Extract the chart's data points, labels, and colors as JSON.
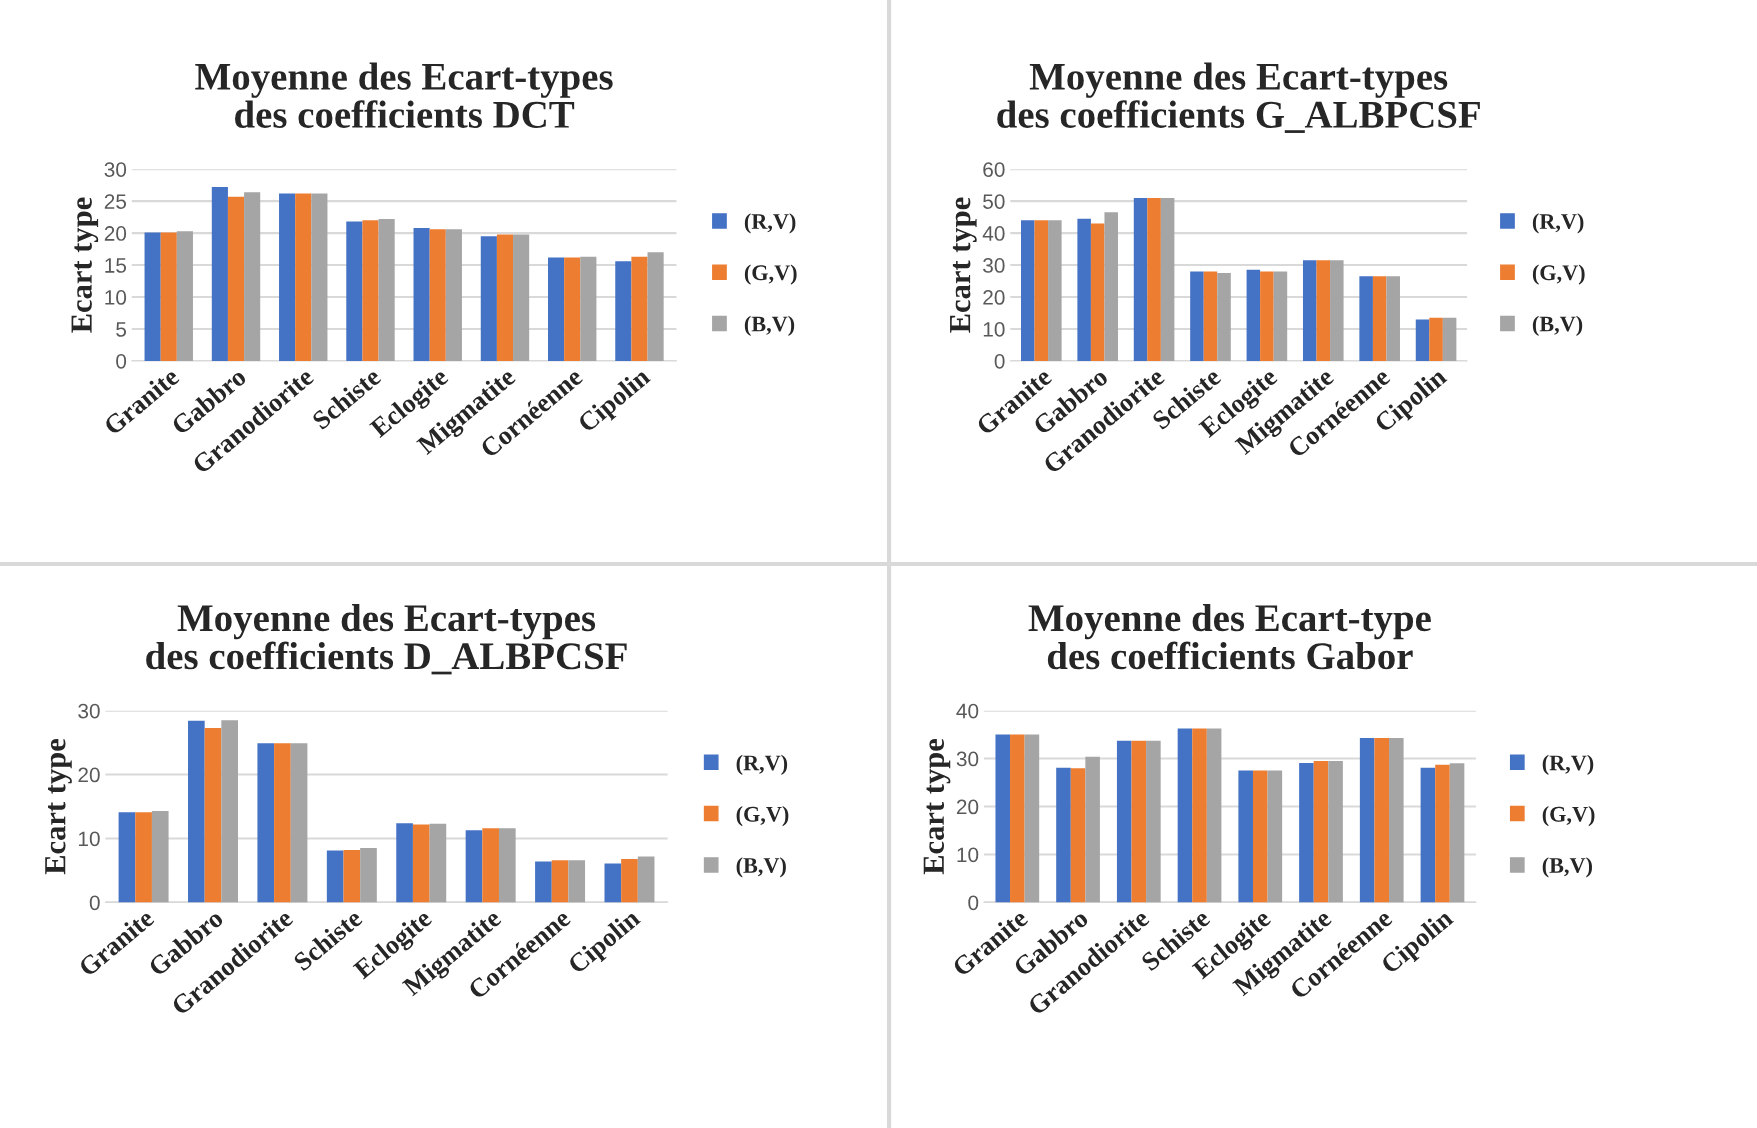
{
  "chart_data": [
    {
      "type": "bar",
      "title": "Moyenne des Ecart-types des coefficients DCT",
      "ylabel": "Ecart type",
      "categories": [
        "Granite",
        "Gabbro",
        "Granodiorite",
        "Schiste",
        "Eclogite",
        "Migmatite",
        "Cornéenne",
        "Cipolin"
      ],
      "ylim": [
        0,
        30
      ],
      "yticks": [
        0,
        5,
        10,
        15,
        20,
        25,
        30
      ],
      "grid": "y",
      "legend": "right",
      "series": [
        {
          "name": "(R,V)",
          "color": "#4472c4",
          "values": [
            20.1,
            27.2,
            26.2,
            21.8,
            20.8,
            19.5,
            16.2,
            15.6
          ]
        },
        {
          "name": "(G,V)",
          "color": "#ed7d31",
          "values": [
            20.1,
            25.7,
            26.2,
            22.0,
            20.6,
            19.8,
            16.2,
            16.3
          ]
        },
        {
          "name": "(B,V)",
          "color": "#a5a5a5",
          "values": [
            20.3,
            26.4,
            26.2,
            22.2,
            20.6,
            19.8,
            16.3,
            17.0
          ]
        }
      ]
    },
    {
      "type": "bar",
      "title": "Moyenne des Ecart-types des coefficients G_ALBPCSF",
      "ylabel": "Ecart type",
      "categories": [
        "Granite",
        "Gabbro",
        "Granodiorite",
        "Schiste",
        "Eclogite",
        "Migmatite",
        "Cornéenne",
        "Cipolin"
      ],
      "ylim": [
        0,
        60
      ],
      "yticks": [
        0,
        10,
        20,
        30,
        40,
        50,
        60
      ],
      "grid": "y",
      "legend": "right",
      "series": [
        {
          "name": "(R,V)",
          "color": "#4472c4",
          "values": [
            44,
            44.5,
            51,
            28,
            28.5,
            31.5,
            26.5,
            13
          ]
        },
        {
          "name": "(G,V)",
          "color": "#ed7d31",
          "values": [
            44,
            43,
            51,
            28,
            28,
            31.5,
            26.5,
            13.5
          ]
        },
        {
          "name": "(B,V)",
          "color": "#a5a5a5",
          "values": [
            44,
            46.5,
            51,
            27.5,
            28,
            31.5,
            26.5,
            13.5
          ]
        }
      ]
    },
    {
      "type": "bar",
      "title": "Moyenne des Ecart-types des coefficients D_ALBPCSF",
      "ylabel": "Ecart type",
      "categories": [
        "Granite",
        "Gabbro",
        "Granodiorite",
        "Schiste",
        "Eclogite",
        "Migmatite",
        "Cornéenne",
        "Cipolin"
      ],
      "ylim": [
        0,
        30
      ],
      "yticks": [
        0,
        10,
        20,
        30
      ],
      "grid": "y",
      "legend": "right",
      "series": [
        {
          "name": "(R,V)",
          "color": "#4472c4",
          "values": [
            14.1,
            28.4,
            24.9,
            8.1,
            12.4,
            11.3,
            6.4,
            6.1
          ]
        },
        {
          "name": "(G,V)",
          "color": "#ed7d31",
          "values": [
            14.1,
            27.3,
            24.9,
            8.2,
            12.2,
            11.6,
            6.6,
            6.8
          ]
        },
        {
          "name": "(B,V)",
          "color": "#a5a5a5",
          "values": [
            14.3,
            28.5,
            24.9,
            8.5,
            12.3,
            11.6,
            6.6,
            7.2
          ]
        }
      ]
    },
    {
      "type": "bar",
      "title": "Moyenne des Ecart-type des coefficients Gabor",
      "ylabel": "Ecart type",
      "categories": [
        "Granite",
        "Gabbro",
        "Granodiorite",
        "Schiste",
        "Eclogite",
        "Migmatite",
        "Cornéenne",
        "Cipolin"
      ],
      "ylim": [
        0,
        40
      ],
      "yticks": [
        0,
        10,
        20,
        30,
        40
      ],
      "grid": "y",
      "legend": "right",
      "series": [
        {
          "name": "(R,V)",
          "color": "#4472c4",
          "values": [
            35,
            28.1,
            33.7,
            36.3,
            27.5,
            29.1,
            34.3,
            28.1
          ]
        },
        {
          "name": "(G,V)",
          "color": "#ed7d31",
          "values": [
            35,
            28,
            33.7,
            36.3,
            27.5,
            29.5,
            34.3,
            28.7
          ]
        },
        {
          "name": "(B,V)",
          "color": "#a5a5a5",
          "values": [
            35,
            30.4,
            33.7,
            36.3,
            27.5,
            29.5,
            34.3,
            29.0
          ]
        }
      ]
    }
  ]
}
